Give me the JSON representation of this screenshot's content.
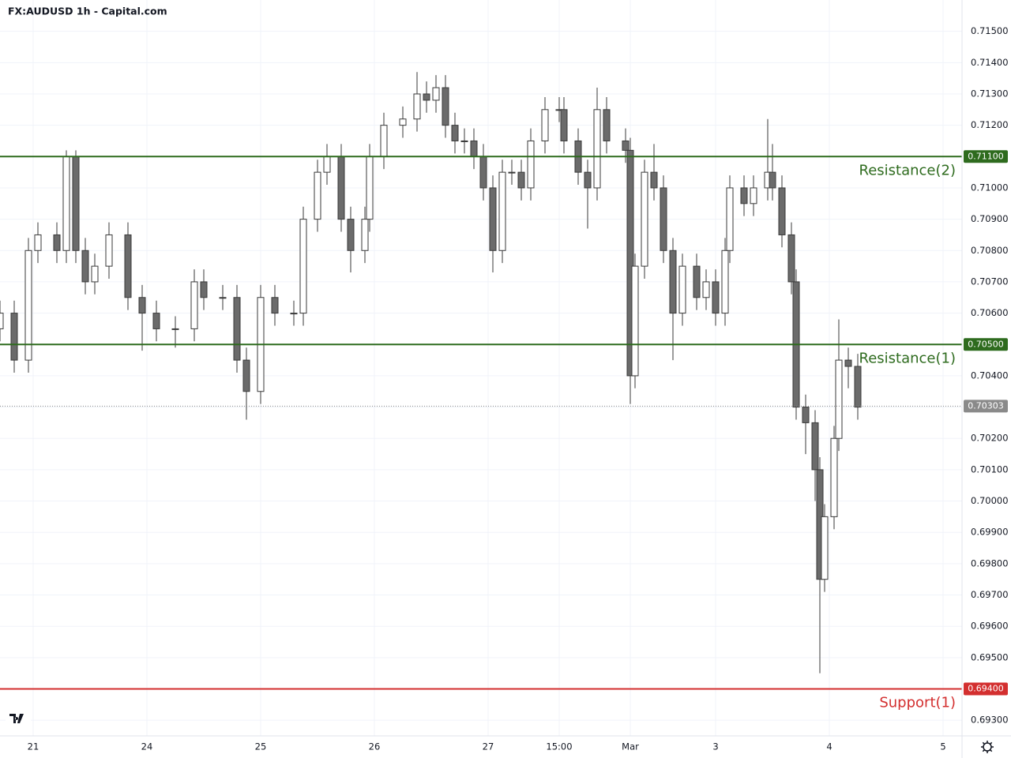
{
  "chart_data": {
    "type": "candlestick",
    "title": "FX:AUDUSD 1h - Capital.com",
    "x": [
      0,
      3,
      6,
      8,
      12,
      14,
      16,
      18,
      20,
      23,
      27,
      30,
      33,
      37,
      41,
      43,
      47,
      50,
      52,
      55,
      58,
      62,
      64,
      67,
      69,
      72,
      74,
      77,
      78,
      81,
      85,
      88,
      90,
      92,
      94,
      96,
      98,
      100,
      102,
      104,
      106,
      108,
      110,
      112,
      115,
      118,
      119,
      122,
      124,
      126,
      128,
      132,
      133,
      134,
      136,
      138,
      140,
      142,
      144,
      147,
      149,
      151,
      153,
      154,
      157,
      159,
      162,
      163,
      165,
      167,
      168,
      170,
      172,
      173,
      174,
      176,
      177,
      179,
      181
    ],
    "open": [
      0.7055,
      0.706,
      0.7045,
      0.708,
      0.7085,
      0.708,
      0.711,
      0.708,
      0.707,
      0.7075,
      0.7085,
      0.7065,
      0.706,
      0.7055,
      0.7055,
      0.707,
      0.7065,
      0.7065,
      0.7045,
      0.7035,
      0.7065,
      0.706,
      0.706,
      0.709,
      0.7105,
      0.711,
      0.709,
      0.708,
      0.709,
      0.711,
      0.712,
      0.7122,
      0.713,
      0.7128,
      0.7132,
      0.712,
      0.7115,
      0.7115,
      0.711,
      0.71,
      0.708,
      0.7105,
      0.7105,
      0.71,
      0.7115,
      0.7125,
      0.7125,
      0.7115,
      0.7105,
      0.71,
      0.7125,
      0.7115,
      0.7112,
      0.704,
      0.7075,
      0.7105,
      0.71,
      0.708,
      0.706,
      0.7075,
      0.7065,
      0.707,
      0.706,
      0.708,
      0.71,
      0.7095,
      0.71,
      0.7105,
      0.71,
      0.7085,
      0.707,
      0.703,
      0.7025,
      0.701,
      0.6975,
      0.6995,
      0.702,
      0.7045,
      0.7043
    ],
    "high": [
      0.7064,
      0.7064,
      0.7084,
      0.7089,
      0.7089,
      0.7112,
      0.7112,
      0.7084,
      0.7079,
      0.7089,
      0.7089,
      0.7069,
      0.7064,
      0.7059,
      0.7074,
      0.7074,
      0.7069,
      0.7069,
      0.7049,
      0.7069,
      0.7069,
      0.7064,
      0.7094,
      0.7109,
      0.7114,
      0.7114,
      0.7094,
      0.7094,
      0.7114,
      0.7124,
      0.7126,
      0.7137,
      0.7134,
      0.7136,
      0.7136,
      0.7124,
      0.7119,
      0.7119,
      0.7114,
      0.7104,
      0.7109,
      0.7109,
      0.7109,
      0.7119,
      0.7129,
      0.7129,
      0.7129,
      0.7119,
      0.7109,
      0.7132,
      0.7129,
      0.7119,
      0.7116,
      0.7079,
      0.7109,
      0.7114,
      0.7104,
      0.7084,
      0.7079,
      0.7079,
      0.7074,
      0.7074,
      0.7084,
      0.7104,
      0.7104,
      0.7104,
      0.7122,
      0.7114,
      0.7104,
      0.7089,
      0.7074,
      0.7034,
      0.7029,
      0.7014,
      0.6999,
      0.7024,
      0.7058,
      0.7049,
      0.7047
    ],
    "low": [
      0.7051,
      0.7041,
      0.7041,
      0.7076,
      0.7076,
      0.7076,
      0.7076,
      0.7066,
      0.7066,
      0.7071,
      0.7061,
      0.7048,
      0.7051,
      0.7049,
      0.7051,
      0.7061,
      0.7061,
      0.7041,
      0.7026,
      0.7031,
      0.7056,
      0.7056,
      0.7056,
      0.7086,
      0.7101,
      0.7086,
      0.7073,
      0.7076,
      0.7086,
      0.7106,
      0.7116,
      0.7118,
      0.7124,
      0.7124,
      0.7116,
      0.7111,
      0.7111,
      0.7106,
      0.7096,
      0.7073,
      0.7076,
      0.7101,
      0.7096,
      0.7096,
      0.7111,
      0.7121,
      0.7111,
      0.7101,
      0.7087,
      0.7096,
      0.7111,
      0.7108,
      0.7031,
      0.7036,
      0.7071,
      0.7096,
      0.7076,
      0.7045,
      0.7056,
      0.7061,
      0.7061,
      0.7056,
      0.7056,
      0.7076,
      0.7091,
      0.7091,
      0.7096,
      0.7096,
      0.7081,
      0.7066,
      0.7026,
      0.7015,
      0.7,
      0.6945,
      0.6971,
      0.6991,
      0.7016,
      0.7036,
      0.7026
    ],
    "close": [
      0.706,
      0.7045,
      0.708,
      0.7085,
      0.708,
      0.711,
      0.708,
      0.707,
      0.7075,
      0.7085,
      0.7065,
      0.706,
      0.7055,
      0.7055,
      0.707,
      0.7065,
      0.7065,
      0.7045,
      0.7035,
      0.7065,
      0.706,
      0.706,
      0.709,
      0.7105,
      0.711,
      0.709,
      0.708,
      0.709,
      0.711,
      0.712,
      0.7122,
      0.713,
      0.7128,
      0.7132,
      0.712,
      0.7115,
      0.7115,
      0.711,
      0.71,
      0.708,
      0.7105,
      0.7105,
      0.71,
      0.7115,
      0.7125,
      0.7125,
      0.7115,
      0.7105,
      0.71,
      0.7125,
      0.7115,
      0.7112,
      0.704,
      0.7075,
      0.7105,
      0.71,
      0.708,
      0.706,
      0.7075,
      0.7065,
      0.707,
      0.706,
      0.708,
      0.71,
      0.7095,
      0.71,
      0.7105,
      0.71,
      0.7085,
      0.707,
      0.703,
      0.7025,
      0.701,
      0.6975,
      0.6995,
      0.702,
      0.7045,
      0.7043,
      0.703
    ],
    "up_color": "#ffffff",
    "down_color": "#6b6b6b",
    "wick_color": "#3a3a3a",
    "xlim": [
      0,
      203
    ],
    "ylim": [
      0.6925,
      0.716
    ],
    "xticks": [
      {
        "value": 7,
        "label": "21"
      },
      {
        "value": 31,
        "label": "24"
      },
      {
        "value": 55,
        "label": "25"
      },
      {
        "value": 79,
        "label": "26"
      },
      {
        "value": 103,
        "label": "27"
      },
      {
        "value": 118,
        "label": "15:00"
      },
      {
        "value": 133,
        "label": "Mar"
      },
      {
        "value": 151,
        "label": "3"
      },
      {
        "value": 175,
        "label": "4"
      },
      {
        "value": 199,
        "label": "5"
      }
    ],
    "yticks": [
      {
        "value": 0.693,
        "label": "0.69300"
      },
      {
        "value": 0.694,
        "label": "0.69400"
      },
      {
        "value": 0.695,
        "label": "0.69500"
      },
      {
        "value": 0.696,
        "label": "0.69600"
      },
      {
        "value": 0.697,
        "label": "0.69700"
      },
      {
        "value": 0.698,
        "label": "0.69800"
      },
      {
        "value": 0.699,
        "label": "0.69900"
      },
      {
        "value": 0.7,
        "label": "0.70000"
      },
      {
        "value": 0.701,
        "label": "0.70100"
      },
      {
        "value": 0.702,
        "label": "0.70200"
      },
      {
        "value": 0.703,
        "label": "0.70300"
      },
      {
        "value": 0.704,
        "label": "0.70400"
      },
      {
        "value": 0.705,
        "label": "0.70500"
      },
      {
        "value": 0.706,
        "label": "0.70600"
      },
      {
        "value": 0.707,
        "label": "0.70700"
      },
      {
        "value": 0.708,
        "label": "0.70800"
      },
      {
        "value": 0.709,
        "label": "0.70900"
      },
      {
        "value": 0.71,
        "label": "0.71000"
      },
      {
        "value": 0.711,
        "label": "0.71100"
      },
      {
        "value": 0.712,
        "label": "0.71200"
      },
      {
        "value": 0.713,
        "label": "0.71300"
      },
      {
        "value": 0.714,
        "label": "0.71400"
      },
      {
        "value": 0.715,
        "label": "0.71500"
      }
    ],
    "grid": true,
    "levels": [
      {
        "name": "Resistance(2)",
        "value": 0.711,
        "value_label": "0.71100",
        "color": "#2e6b1e"
      },
      {
        "name": "Resistance(1)",
        "value": 0.705,
        "value_label": "0.70500",
        "color": "#2e6b1e"
      },
      {
        "name": "Support(1)",
        "value": 0.694,
        "value_label": "0.69400",
        "color": "#d32f2f"
      }
    ],
    "last_price": {
      "value": 0.70303,
      "label": "0.70303",
      "color": "#8a8a8a"
    }
  }
}
